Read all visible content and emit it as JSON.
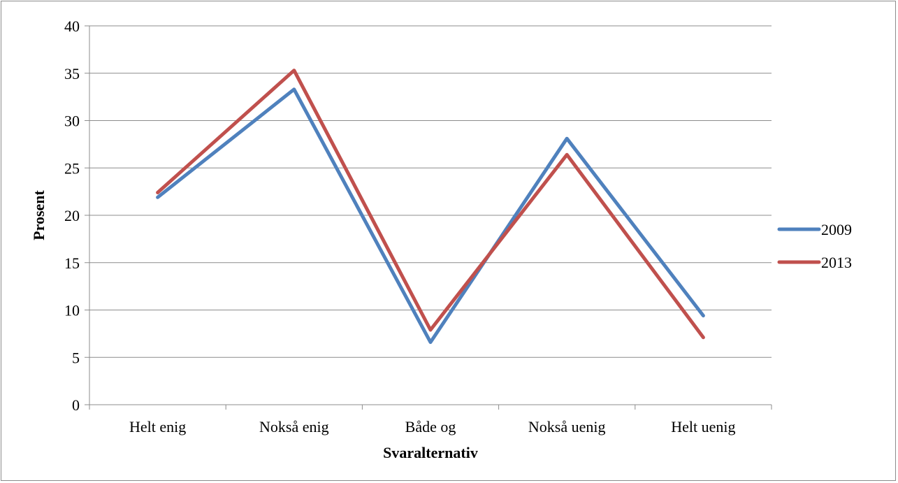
{
  "chart_data": {
    "type": "line",
    "title": "",
    "xlabel": "Svaralternativ",
    "ylabel": "Prosent",
    "ylim": [
      0,
      40
    ],
    "yticks": [
      0,
      5,
      10,
      15,
      20,
      25,
      30,
      35,
      40
    ],
    "grid": true,
    "legend_position": "right",
    "categories": [
      "Helt enig",
      "Nokså enig",
      "Både og",
      "Nokså uenig",
      "Helt uenig"
    ],
    "series": [
      {
        "name": "2009",
        "color": "#4f81bd",
        "values": [
          21.9,
          33.3,
          6.6,
          28.1,
          9.4
        ]
      },
      {
        "name": "2013",
        "color": "#c0504d",
        "values": [
          22.4,
          35.3,
          7.9,
          26.4,
          7.1
        ]
      }
    ]
  }
}
